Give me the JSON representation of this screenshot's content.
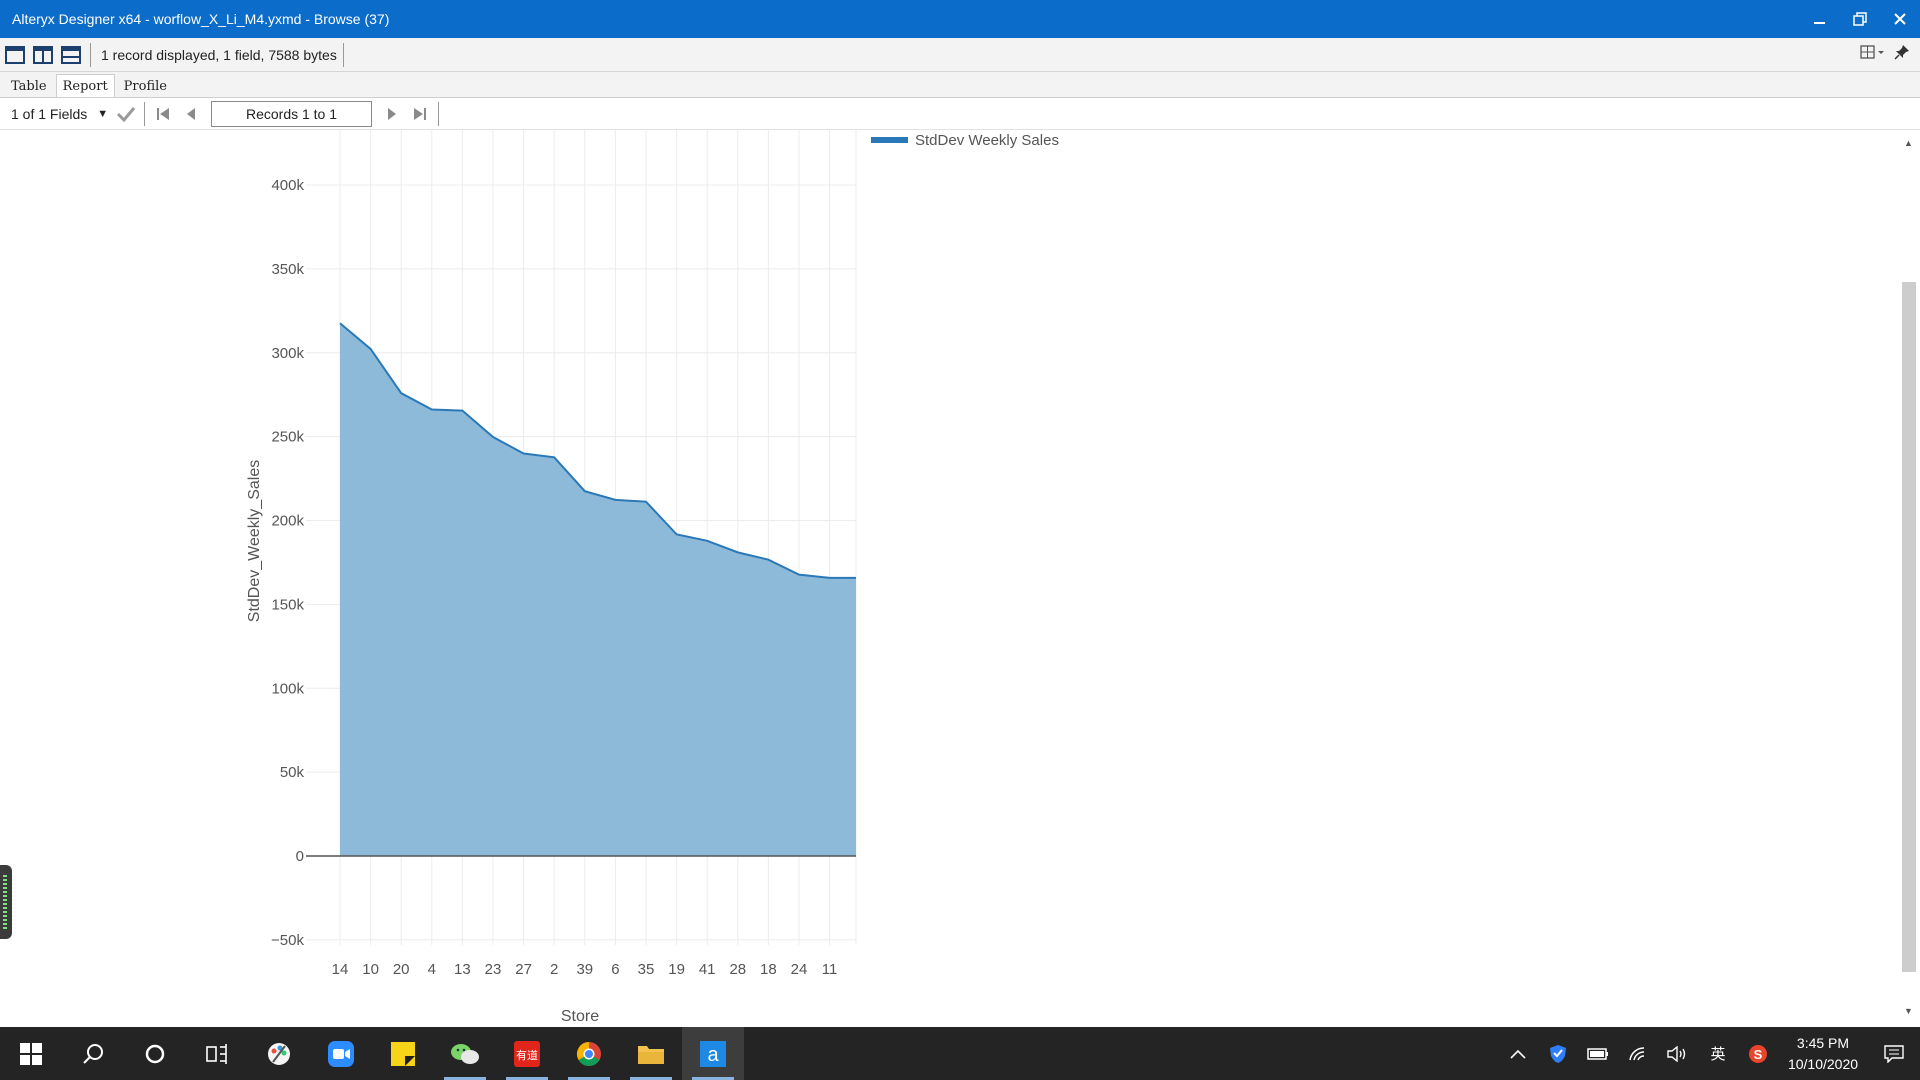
{
  "window": {
    "title": "Alteryx Designer x64 - worflow_X_Li_M4.yxmd - Browse (37)",
    "minimize_icon": "minimize-icon",
    "restore_icon": "restore-icon",
    "close_icon": "close-icon"
  },
  "toolbar": {
    "status": "1 record displayed, 1 field, 7588 bytes",
    "layout_icons": [
      "single-pane-icon",
      "split-vertical-icon",
      "split-horizontal-icon"
    ],
    "right_icons": [
      "view-options-icon",
      "pin-icon"
    ]
  },
  "tabs": [
    {
      "label": "Table",
      "active": false
    },
    {
      "label": "Report",
      "active": true
    },
    {
      "label": "Profile",
      "active": false
    }
  ],
  "navbar": {
    "fields_select": "1 of 1 Fields",
    "records": "Records 1 to 1"
  },
  "chart_data": {
    "type": "area",
    "categories": [
      "14",
      "10",
      "20",
      "4",
      "13",
      "23",
      "27",
      "2",
      "39",
      "6",
      "35",
      "19",
      "41",
      "28",
      "18",
      "24",
      "11"
    ],
    "series": [
      {
        "name": "StdDev Weekly Sales",
        "values": [
          317570,
          302263,
          275901,
          266201,
          265507,
          249739,
          239931,
          237684,
          217466,
          212291,
          211220,
          191723,
          187907,
          181001,
          176642,
          167745,
          165834
        ],
        "color": "#2b78b8",
        "fill": "#8ebad9"
      }
    ],
    "xlabel": "Store",
    "ylabel": "StdDev_Weekly_Sales",
    "ylim": [
      -50000,
      400000
    ],
    "yticks": [
      -50000,
      0,
      50000,
      100000,
      150000,
      200000,
      250000,
      300000,
      350000,
      400000
    ],
    "ytick_labels": [
      "−50k",
      "0",
      "50k",
      "100k",
      "150k",
      "200k",
      "250k",
      "300k",
      "350k",
      "400k"
    ],
    "grid": true,
    "legend": "top-right"
  },
  "taskbar": {
    "apps": [
      "windows-start-icon",
      "search-icon",
      "cortana-icon",
      "task-view-icon",
      "paint-app-icon",
      "zoom-app-icon",
      "sticky-notes-icon",
      "wechat-icon",
      "youdao-icon",
      "chrome-icon",
      "file-explorer-icon",
      "alteryx-icon"
    ],
    "time": "3:45 PM",
    "date": "10/10/2020",
    "ime": "英"
  }
}
